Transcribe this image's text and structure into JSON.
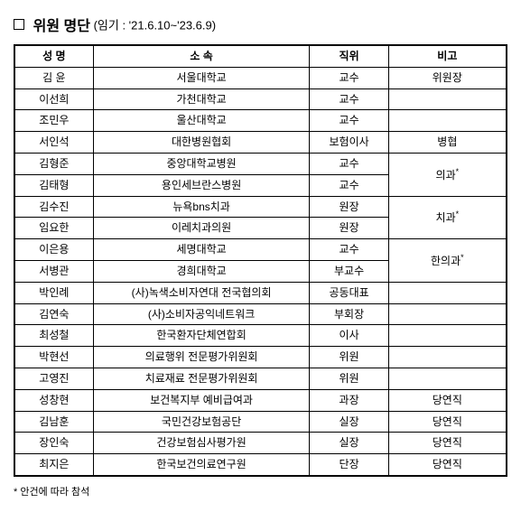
{
  "title": "위원 명단",
  "subtitle": "(임기 : '21.6.10~'23.6.9)",
  "columns": [
    "성 명",
    "소 속",
    "직위",
    "비고"
  ],
  "colWidths": [
    "16%",
    "44%",
    "16%",
    "24%"
  ],
  "rows": [
    {
      "name": "김 윤",
      "org": "서울대학교",
      "pos": "교수",
      "note": "위원장",
      "rowspan": 1
    },
    {
      "name": "이선희",
      "org": "가천대학교",
      "pos": "교수",
      "note": "",
      "rowspan": 1
    },
    {
      "name": "조민우",
      "org": "울산대학교",
      "pos": "교수",
      "note": "",
      "rowspan": 1
    },
    {
      "name": "서인석",
      "org": "대한병원협회",
      "pos": "보험이사",
      "note": "병협",
      "rowspan": 1
    },
    {
      "name": "김형준",
      "org": "중앙대학교병원",
      "pos": "교수",
      "note": "의과*",
      "rowspan": 2
    },
    {
      "name": "김태형",
      "org": "용인세브란스병원",
      "pos": "교수"
    },
    {
      "name": "김수진",
      "org": "뉴욕bns치과",
      "pos": "원장",
      "note": "치과*",
      "rowspan": 2
    },
    {
      "name": "임요한",
      "org": "이레치과의원",
      "pos": "원장"
    },
    {
      "name": "이은용",
      "org": "세명대학교",
      "pos": "교수",
      "note": "한의과*",
      "rowspan": 2
    },
    {
      "name": "서병관",
      "org": "경희대학교",
      "pos": "부교수"
    },
    {
      "name": "박인례",
      "org": "(사)녹색소비자연대 전국협의회",
      "pos": "공동대표",
      "note": "",
      "rowspan": 1
    },
    {
      "name": "김연숙",
      "org": "(사)소비자공익네트워크",
      "pos": "부회장",
      "note": "",
      "rowspan": 1
    },
    {
      "name": "최성철",
      "org": "한국환자단체연합회",
      "pos": "이사",
      "note": "",
      "rowspan": 1
    },
    {
      "name": "박현선",
      "org": "의료행위 전문평가위원회",
      "pos": "위원",
      "note": "",
      "rowspan": 1
    },
    {
      "name": "고영진",
      "org": "치료재료 전문평가위원회",
      "pos": "위원",
      "note": "",
      "rowspan": 1
    },
    {
      "name": "성창현",
      "org": "보건복지부 예비급여과",
      "pos": "과장",
      "note": "당연직",
      "rowspan": 1
    },
    {
      "name": "김남훈",
      "org": "국민건강보험공단",
      "pos": "실장",
      "note": "당연직",
      "rowspan": 1
    },
    {
      "name": "장인숙",
      "org": "건강보험심사평가원",
      "pos": "실장",
      "note": "당연직",
      "rowspan": 1
    },
    {
      "name": "최지은",
      "org": "한국보건의료연구원",
      "pos": "단장",
      "note": "당연직",
      "rowspan": 1
    }
  ],
  "footnote": "* 안건에 따라 참석"
}
